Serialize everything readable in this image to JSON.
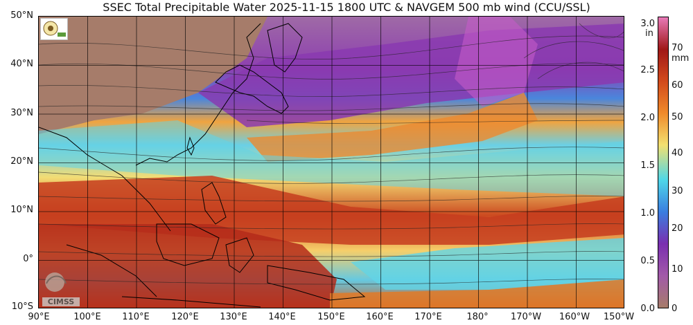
{
  "title": "SSEC Total Precipitable Water  2025-11-15 1800 UTC & NAVGEM 500 mb wind (CCU/SSL)",
  "map": {
    "latitude_labels": [
      "50°N",
      "40°N",
      "30°N",
      "20°N",
      "10°N",
      "0°",
      "10°S"
    ],
    "longitude_labels": [
      "90°E",
      "100°E",
      "110°E",
      "120°E",
      "130°E",
      "140°E",
      "150°E",
      "160°E",
      "170°E",
      "180°",
      "170°W",
      "160°W",
      "150°W"
    ],
    "grid": true,
    "extent": {
      "lon_min": 90,
      "lon_max": 210,
      "lat_min": -10,
      "lat_max": 50
    }
  },
  "colorbar": {
    "inch_unit": "in",
    "mm_unit": "mm",
    "inch_ticks": [
      "3.0",
      "2.5",
      "2.0",
      "1.5",
      "1.0",
      "0.5",
      "0.0"
    ],
    "mm_ticks": [
      "70",
      "60",
      "50",
      "40",
      "30",
      "20",
      "10",
      "0"
    ],
    "colors": [
      "#a67c6a",
      "#a25aa8",
      "#7a2fb0",
      "#3a7ee0",
      "#4fd7e8",
      "#f3e070",
      "#f08a2a",
      "#d24a1c",
      "#a01818",
      "#e87ab8"
    ]
  },
  "logos": {
    "cimss_text": "CIMSS"
  },
  "colors": {
    "dry_brown": "#a67c6a",
    "purple": "#8a3ab0",
    "blue": "#3f8de0",
    "cyan": "#62d4e6",
    "yellow": "#f2de74",
    "orange": "#ec8a30",
    "red": "#c63d1e",
    "coast": "#000000"
  }
}
